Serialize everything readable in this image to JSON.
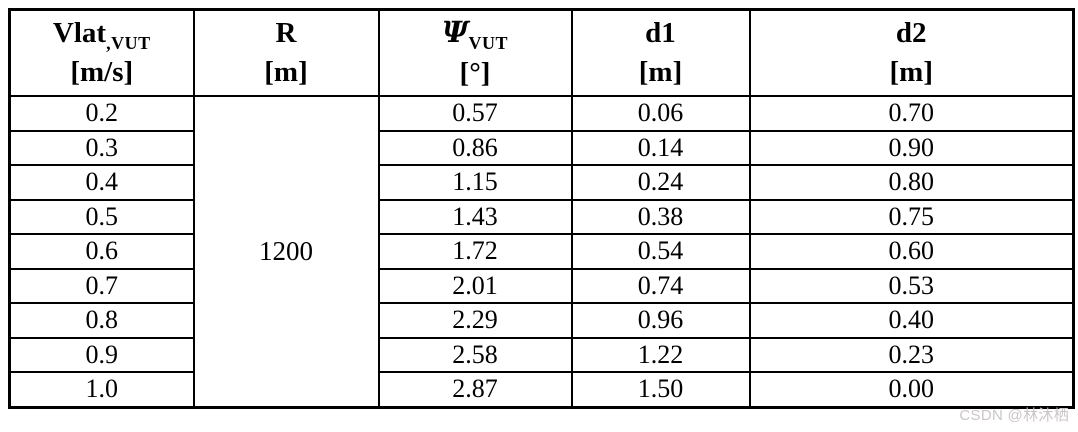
{
  "table": {
    "columns": [
      {
        "main": "Vlat",
        "sub": ",VUT",
        "unit": "[m/s]"
      },
      {
        "main": "R",
        "sub": "",
        "unit": "[m]"
      },
      {
        "main": "Ψ",
        "sub": "VUT",
        "unit": "[°]"
      },
      {
        "main": "d1",
        "sub": "",
        "unit": "[m]"
      },
      {
        "main": "d2",
        "sub": "",
        "unit": "[m]"
      }
    ],
    "r_value": "1200",
    "rows": [
      {
        "vlat": "0.2",
        "psi": "0.57",
        "d1": "0.06",
        "d2": "0.70"
      },
      {
        "vlat": "0.3",
        "psi": "0.86",
        "d1": "0.14",
        "d2": "0.90"
      },
      {
        "vlat": "0.4",
        "psi": "1.15",
        "d1": "0.24",
        "d2": "0.80"
      },
      {
        "vlat": "0.5",
        "psi": "1.43",
        "d1": "0.38",
        "d2": "0.75"
      },
      {
        "vlat": "0.6",
        "psi": "1.72",
        "d1": "0.54",
        "d2": "0.60"
      },
      {
        "vlat": "0.7",
        "psi": "2.01",
        "d1": "0.74",
        "d2": "0.53"
      },
      {
        "vlat": "0.8",
        "psi": "2.29",
        "d1": "0.96",
        "d2": "0.40"
      },
      {
        "vlat": "0.9",
        "psi": "2.58",
        "d1": "1.22",
        "d2": "0.23"
      },
      {
        "vlat": "1.0",
        "psi": "2.87",
        "d1": "1.50",
        "d2": "0.00"
      }
    ]
  },
  "watermark": {
    "text": "CSDN @林沐栖"
  },
  "colors": {
    "border": "#000000",
    "text": "#000000",
    "background": "#ffffff",
    "watermark": "#ccc6c6"
  }
}
